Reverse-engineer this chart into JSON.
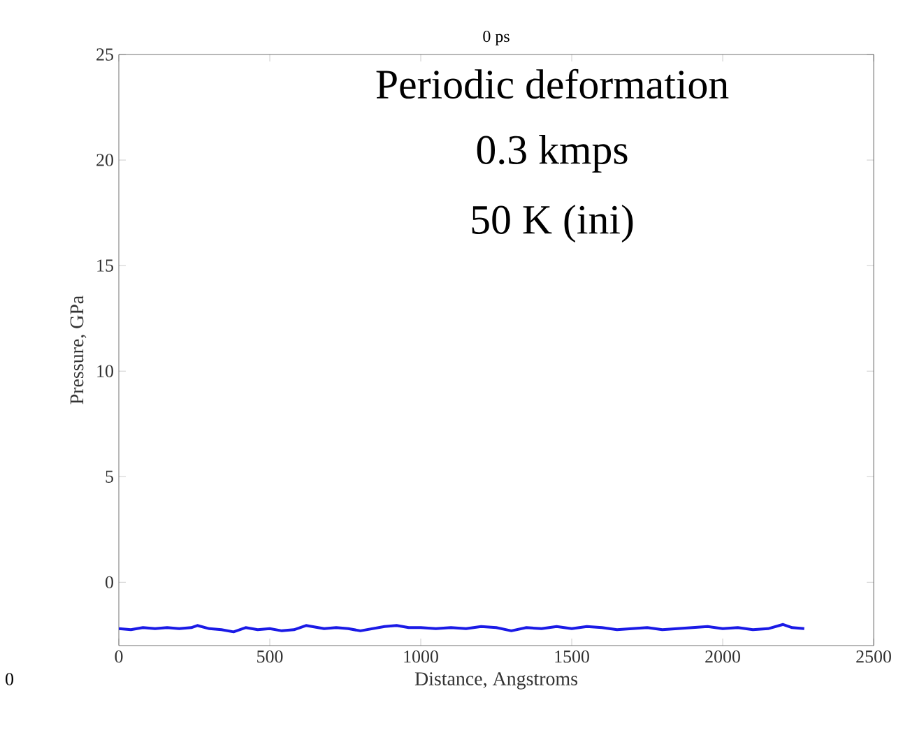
{
  "chart_data": {
    "type": "line",
    "title": "0 ps",
    "xlabel": "Distance, Angstroms",
    "ylabel": "Pressure, GPa",
    "xlim": [
      0,
      2500
    ],
    "ylim": [
      -3,
      25
    ],
    "xticks": [
      0,
      500,
      1000,
      1500,
      2000,
      2500
    ],
    "yticks": [
      0,
      5,
      10,
      15,
      20,
      25
    ],
    "annotations": [
      "Periodic deformation",
      "0.3 kmps",
      "50 K (ini)",
      "0"
    ],
    "series": [
      {
        "color": "#1a1ae6",
        "x": [
          0,
          40,
          80,
          120,
          160,
          200,
          240,
          260,
          300,
          340,
          380,
          420,
          460,
          500,
          540,
          580,
          620,
          640,
          680,
          720,
          760,
          800,
          840,
          880,
          920,
          960,
          1000,
          1050,
          1100,
          1150,
          1200,
          1250,
          1300,
          1350,
          1400,
          1450,
          1500,
          1550,
          1600,
          1650,
          1700,
          1750,
          1800,
          1850,
          1900,
          1950,
          2000,
          2050,
          2100,
          2150,
          2200,
          2230,
          2270
        ],
        "values": [
          -2.2,
          -2.25,
          -2.15,
          -2.2,
          -2.15,
          -2.2,
          -2.15,
          -2.05,
          -2.2,
          -2.25,
          -2.35,
          -2.15,
          -2.25,
          -2.2,
          -2.3,
          -2.25,
          -2.05,
          -2.1,
          -2.2,
          -2.15,
          -2.2,
          -2.3,
          -2.2,
          -2.1,
          -2.05,
          -2.15,
          -2.15,
          -2.2,
          -2.15,
          -2.2,
          -2.1,
          -2.15,
          -2.3,
          -2.15,
          -2.2,
          -2.1,
          -2.2,
          -2.1,
          -2.15,
          -2.25,
          -2.2,
          -2.15,
          -2.25,
          -2.2,
          -2.15,
          -2.1,
          -2.2,
          -2.15,
          -2.25,
          -2.2,
          -2.0,
          -2.15,
          -2.2
        ]
      }
    ]
  }
}
